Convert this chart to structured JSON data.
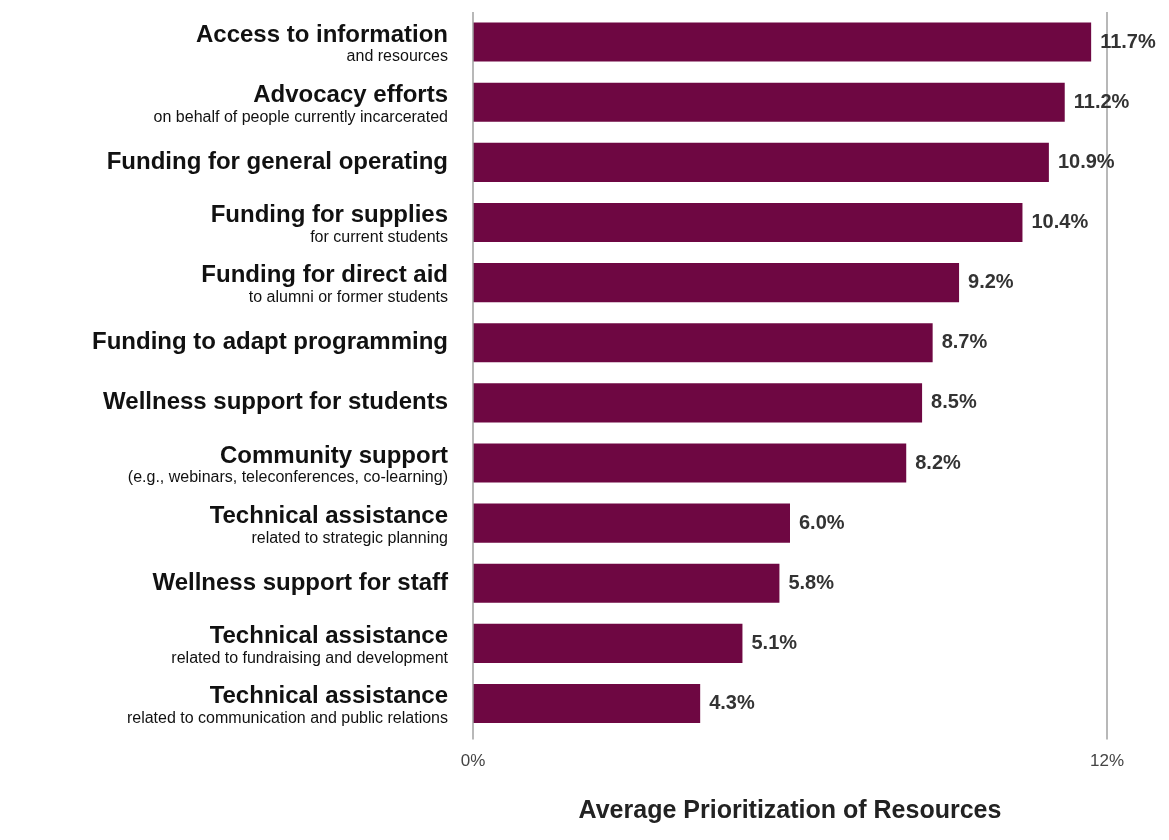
{
  "chart_data": {
    "type": "bar",
    "orientation": "horizontal",
    "xlabel": "Average Prioritization of Resources",
    "categories": [
      "Access to information\nand resources",
      "Advocacy efforts\non behalf of people currently incarcerated",
      "Funding for general operating",
      "Funding for supplies\nfor current students",
      "Funding for direct aid\nto alumni or former students",
      "Funding to adapt programming",
      "Wellness support for students",
      "Community support\n(e.g., webinars, teleconferences, co-learning)",
      "Technical assistance\nrelated to strategic planning",
      "Wellness support for staff",
      "Technical assistance\nrelated to fundraising and development",
      "Technical assistance\nrelated to communication and public relations"
    ],
    "values": [
      11.7,
      11.2,
      10.9,
      10.4,
      9.2,
      8.7,
      8.5,
      8.2,
      6.0,
      5.8,
      5.1,
      4.3
    ],
    "value_labels": [
      "11.7%",
      "11.2%",
      "10.9%",
      "10.4%",
      "9.2%",
      "8.7%",
      "8.5%",
      "8.2%",
      "6.0%",
      "5.8%",
      "5.1%",
      "4.3%"
    ],
    "color": "#6e0742",
    "xlim": [
      0,
      12
    ],
    "xticks": [
      {
        "value": 0,
        "label": "0%"
      },
      {
        "value": 12,
        "label": "12%"
      }
    ],
    "legend": false
  }
}
